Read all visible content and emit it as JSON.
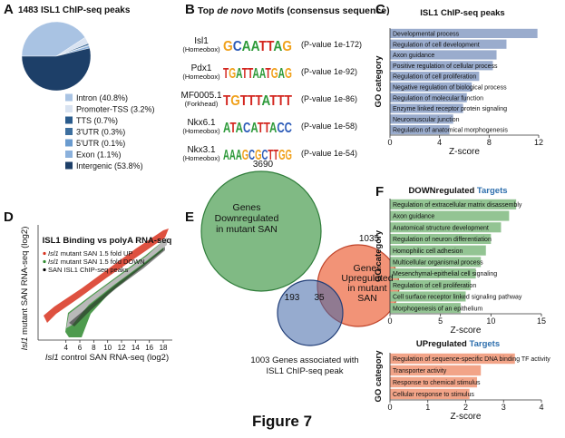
{
  "figure_title": "Figure 7",
  "panel_labels": [
    "A",
    "B",
    "C",
    "D",
    "E",
    "F"
  ],
  "chart_data": [
    {
      "type": "pie",
      "title": "1483 ISL1 ChIP-seq peaks",
      "categories": [
        "Intron",
        "Promoter-TSS",
        "TTS",
        "3'UTR",
        "5'UTR",
        "Exon",
        "Intergenic"
      ],
      "values": [
        40.8,
        3.2,
        0.7,
        0.3,
        0.1,
        1.1,
        53.8
      ],
      "value_labels": [
        "(40.8%)",
        "(3.2%)",
        "(0.7%)",
        "(0.3%)",
        "(0.1%)",
        "(1.1%)",
        "(53.8%)"
      ],
      "colors": [
        "#a9c3e3",
        "#d9e3f1",
        "#2a5b8c",
        "#3d6f9f",
        "#6a9bcf",
        "#8bb1dc",
        "#1d3f68"
      ]
    },
    {
      "type": "hbar",
      "title": "ISL1 ChIP-seq peaks",
      "xlabel": "Z-score",
      "ylabel": "GO category",
      "color": "#9aaccd",
      "categories": [
        "Developmental process",
        "Regulation of cell development",
        "Axon guidance",
        "Positive regulation of cellular process",
        "Regulation of cell proliferation",
        "Negative regulation of biological process",
        "Regulation of molecular function",
        "Enzyme linked receptor protein signaling",
        "Neuromuscular junction",
        "Regulation of anatomical morphogenesis"
      ],
      "values": [
        11.9,
        9.4,
        8.6,
        8.3,
        7.2,
        6.6,
        6.2,
        5.9,
        5.1,
        4.8
      ],
      "xlim": [
        0,
        12
      ],
      "xticks": [
        0,
        4,
        8,
        12
      ]
    },
    {
      "type": "hbar",
      "title": "DOWNregulated",
      "title_highlight": "Targets",
      "xlabel": "Z-score",
      "ylabel": "GO category",
      "color": "#93c493",
      "categories": [
        "Regulation of extracellular matrix disassembly",
        "Axon guidance",
        "Anatomical structure development",
        "Regulation of neuron differentiation",
        "Homophilic cell adhesion",
        "Multicellular organismal process",
        "Mesenchymal-epithelial cell signaling",
        "Regulation of cell proliferation",
        "Cell surface receptor linked signaling pathway",
        "Morphogenesis of an epithelium"
      ],
      "values": [
        12.5,
        11.8,
        11,
        10,
        9.5,
        9,
        8.5,
        8,
        7.5,
        7
      ],
      "xlim": [
        0,
        15
      ],
      "xticks": [
        0,
        5,
        10,
        15
      ]
    },
    {
      "type": "hbar",
      "title": "UPregulated",
      "title_highlight": "Targets",
      "xlabel": "Z-score",
      "ylabel": "GO category",
      "color": "#f2a488",
      "categories": [
        "Regulation of sequence-specific DNA binding TF activity",
        "Transporter activity",
        "Response to chemical stimulus",
        "Cellular response to stimulus"
      ],
      "values": [
        3.3,
        2.4,
        2.3,
        2.1
      ],
      "xlim": [
        0,
        4
      ],
      "xticks": [
        0,
        1,
        2,
        3,
        4
      ]
    }
  ],
  "motifs": {
    "title_pre": "Top ",
    "title_em": "de novo",
    "title_post": " Motifs (consensus sequence)",
    "rows": [
      {
        "name": "Isl1",
        "family": "(Homeobox)",
        "logo": "GCAATTAG",
        "pvalue": "(P-value 1e-172)"
      },
      {
        "name": "Pdx1",
        "family": "(Homeobox)",
        "logo": "TGATTAATGAG",
        "pvalue": "(P-value 1e-92)"
      },
      {
        "name": "MF0005.1",
        "family": "(Forkhead)",
        "logo": "TGTTTATTT",
        "pvalue": "(P-value 1e-86)"
      },
      {
        "name": "Nkx6.1",
        "family": "(Homeobox)",
        "logo": "ATACATTACC",
        "pvalue": "(P-value 1e-58)"
      },
      {
        "name": "Nkx3.1",
        "family": "(Homeobox)",
        "logo": "AAAGCGCTTGG",
        "pvalue": "(P-value 1e-54)"
      }
    ]
  },
  "scatter_panel": {
    "title": "ISL1 Binding vs polyA RNA-seq",
    "xlabel_em": "Isl1",
    "xlabel": " control SAN RNA-seq (log2)",
    "ylabel_em": "Isl1",
    "ylabel": " mutant SAN RNA-seq (log2)",
    "xlim": [
      0,
      19.3
    ],
    "xticks": [
      4,
      6,
      8,
      10,
      12,
      14,
      16,
      18
    ],
    "legend": [
      {
        "em": "Isl1",
        "text": " mutant SAN 1.5 fold UP",
        "color": "#d8321f"
      },
      {
        "em": "Isl1",
        "text": " mutant SAN 1.5 fold DOWN",
        "color": "#2f8a2f"
      },
      {
        "text": "SAN ISL1 ChIP-seq peaks",
        "color": "#000000"
      }
    ]
  },
  "venn": {
    "down_count": "3690",
    "down_label": [
      "Genes",
      "Downregulated",
      "in mutant SAN"
    ],
    "up_count": "1035",
    "up_label": [
      "Genes",
      "Upregulated",
      "in mutant",
      "SAN"
    ],
    "overlap_down": "193",
    "overlap_up": "35",
    "chip_label": [
      "1003 Genes associated with",
      "ISL1 ChIP-seq peak"
    ]
  }
}
